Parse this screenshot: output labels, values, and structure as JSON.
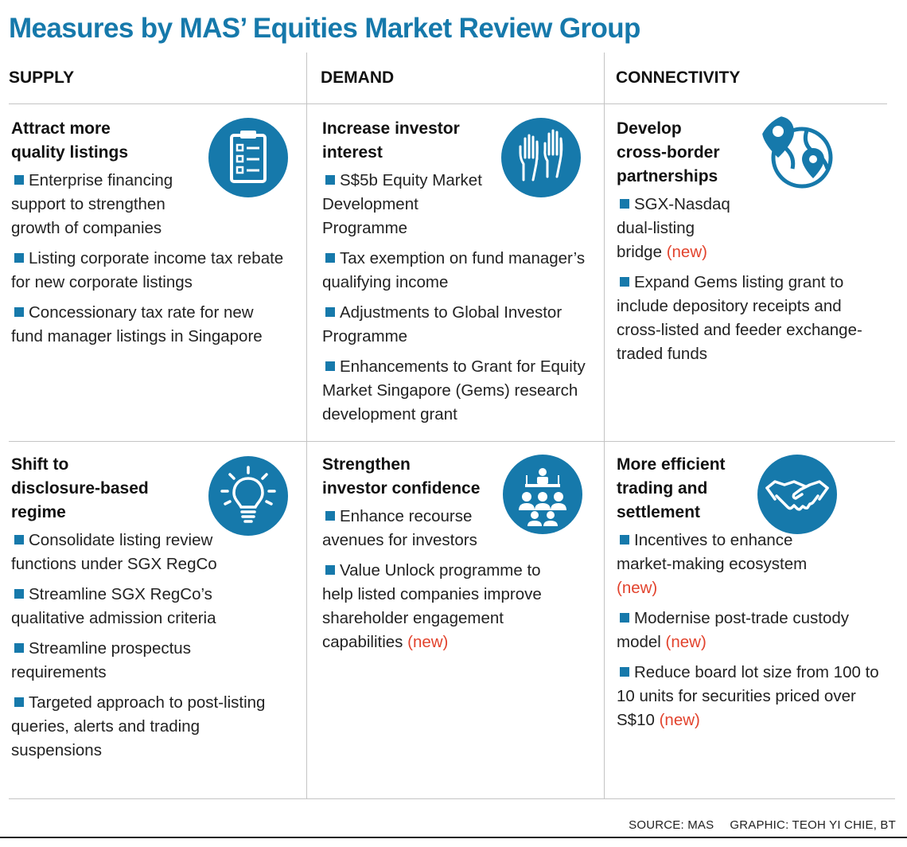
{
  "title": "Measures by MAS’ Equities Market Review Group",
  "columns": [
    "SUPPLY",
    "DEMAND",
    "CONNECTIVITY"
  ],
  "colors": {
    "accent": "#1679ab",
    "new_tag": "#e2432d"
  },
  "new_label": "(new)",
  "cells": [
    {
      "heading": [
        "Attract more",
        "quality listings"
      ],
      "icon": "clipboard-checklist-icon",
      "items": [
        {
          "text": "Enterprise financing support to strengthen growth of companies",
          "new": false
        },
        {
          "text": "Listing corporate income tax rebate for new corporate listings",
          "new": false
        },
        {
          "text": "Concessionary tax rate for new fund manager listings in Singapore",
          "new": false
        }
      ]
    },
    {
      "heading": [
        "Increase investor",
        "interest"
      ],
      "icon": "raised-hands-icon",
      "items": [
        {
          "text": "S$5b Equity Market Development Programme",
          "new": false
        },
        {
          "text": "Tax exemption on fund manager’s qualifying income",
          "new": false
        },
        {
          "text": "Adjustments to Global Investor Programme",
          "new": false
        },
        {
          "text": "Enhancements to Grant for Equity Market Singapore (Gems) research development grant",
          "new": false
        }
      ]
    },
    {
      "heading": [
        "Develop",
        "cross-border",
        "partnerships"
      ],
      "icon": "globe-location-pins-icon",
      "items": [
        {
          "text": "SGX-Nasdaq dual-listing bridge",
          "new": true
        },
        {
          "text": "Expand Gems listing grant to include depository receipts and cross-listed and feeder exchange-traded funds",
          "new": false
        }
      ]
    },
    {
      "heading": [
        "Shift to",
        "disclosure-based",
        "regime"
      ],
      "icon": "lightbulb-icon",
      "items": [
        {
          "text": "Consolidate listing review functions under SGX RegCo",
          "new": false
        },
        {
          "text": "Streamline SGX RegCo’s qualitative admission criteria",
          "new": false
        },
        {
          "text": "Streamline prospectus requirements",
          "new": false
        },
        {
          "text": "Targeted approach to post-listing queries, alerts and trading suspensions",
          "new": false
        }
      ]
    },
    {
      "heading": [
        "Strengthen",
        "investor confidence"
      ],
      "icon": "speaker-audience-icon",
      "items": [
        {
          "text": "Enhance recourse avenues for investors",
          "new": false
        },
        {
          "text": "Value Unlock programme to help listed companies improve shareholder engagement capabilities",
          "new": true
        }
      ]
    },
    {
      "heading": [
        "More efficient",
        "trading and",
        "settlement"
      ],
      "icon": "handshake-icon",
      "items": [
        {
          "text": "Incentives to enhance market-making ecosystem",
          "new": true
        },
        {
          "text": "Modernise post-trade custody model",
          "new": true
        },
        {
          "text": "Reduce board lot size from 100 to 10 units for securities priced over S$10",
          "new": true
        }
      ]
    }
  ],
  "footer": {
    "source": "SOURCE: MAS",
    "credit": "GRAPHIC: TEOH YI CHIE, BT"
  }
}
